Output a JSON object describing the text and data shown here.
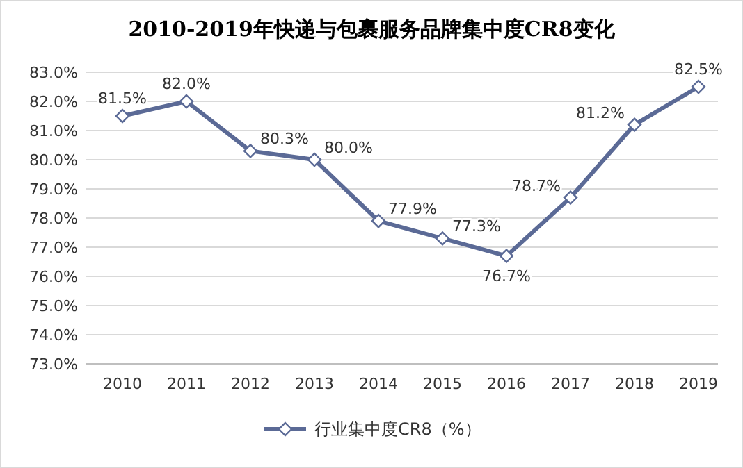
{
  "chart_data": {
    "type": "line",
    "title": "2010-2019年快递与包裹服务品牌集中度CR8变化",
    "categories": [
      "2010",
      "2011",
      "2012",
      "2013",
      "2014",
      "2015",
      "2016",
      "2017",
      "2018",
      "2019"
    ],
    "series": [
      {
        "name": "行业集中度CR8（%）",
        "color": "#5b6a96",
        "values": [
          81.5,
          82.0,
          80.3,
          80.0,
          77.9,
          77.3,
          76.7,
          78.7,
          81.2,
          82.5
        ],
        "value_labels": [
          "81.5%",
          "82.0%",
          "80.3%",
          "80.0%",
          "77.9%",
          "77.3%",
          "76.7%",
          "78.7%",
          "81.2%",
          "82.5%"
        ]
      }
    ],
    "ylim": [
      73,
      83
    ],
    "yticks": [
      {
        "value": 73,
        "label": "73.0%"
      },
      {
        "value": 74,
        "label": "74.0%"
      },
      {
        "value": 75,
        "label": "75.0%"
      },
      {
        "value": 76,
        "label": "76.0%"
      },
      {
        "value": 77,
        "label": "77.0%"
      },
      {
        "value": 78,
        "label": "78.0%"
      },
      {
        "value": 79,
        "label": "79.0%"
      },
      {
        "value": 80,
        "label": "80.0%"
      },
      {
        "value": 81,
        "label": "81.0%"
      },
      {
        "value": 82,
        "label": "82.0%"
      },
      {
        "value": 83,
        "label": "83.0%"
      }
    ],
    "grid": "y",
    "legend": "bottom",
    "marker": "diamond",
    "line_style": "solid"
  }
}
